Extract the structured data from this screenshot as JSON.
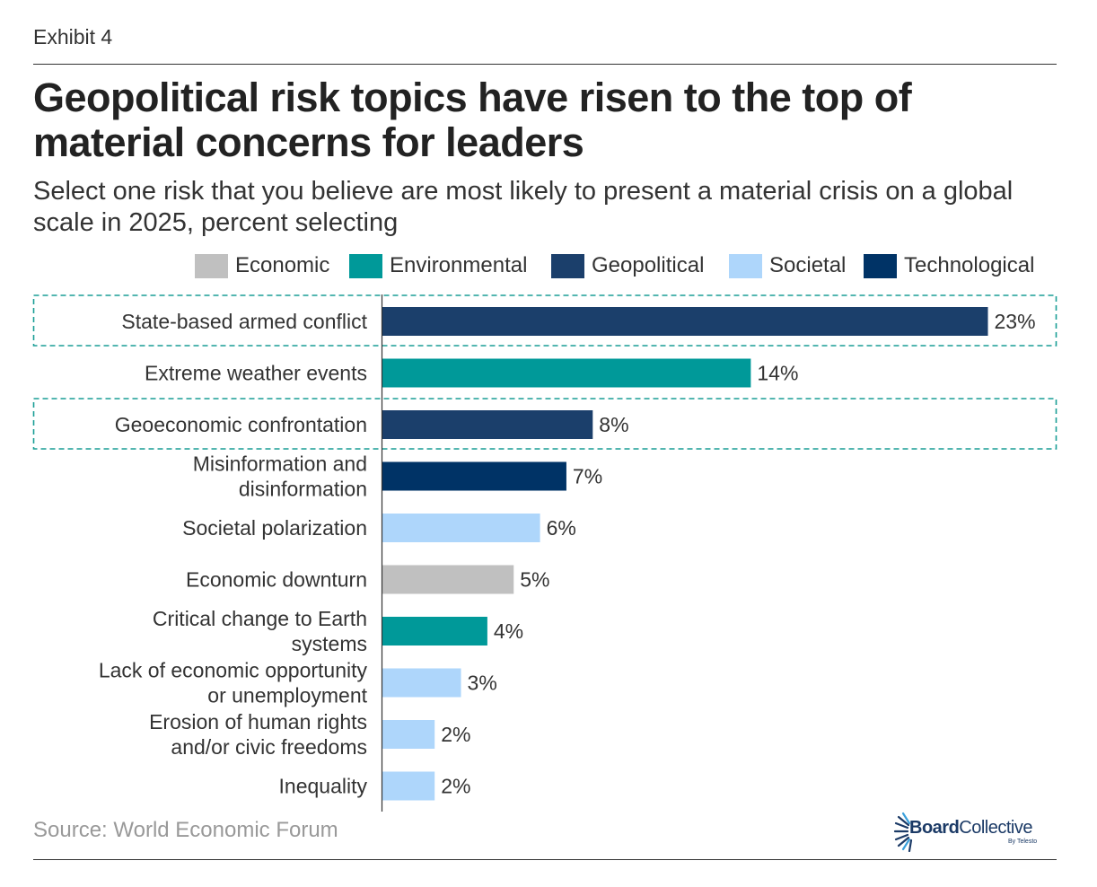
{
  "header": {
    "exhibit": "Exhibit 4",
    "title": "Geopolitical risk topics have risen to the top of material concerns for leaders",
    "subtitle": "Select one risk that you believe are most likely to present a material crisis on a global scale in 2025, percent selecting"
  },
  "legend": [
    {
      "label": "Economic",
      "color": "#c0c0c0"
    },
    {
      "label": "Environmental",
      "color": "#009999"
    },
    {
      "label": "Geopolitical",
      "color": "#1b3f6b"
    },
    {
      "label": "Societal",
      "color": "#aed6fb"
    },
    {
      "label": "Technological",
      "color": "#003366"
    }
  ],
  "chart_data": {
    "type": "bar",
    "orientation": "horizontal",
    "title": "Geopolitical risk topics have risen to the top of material concerns for leaders",
    "subtitle": "Select one risk that you believe are most likely to present a material crisis on a global scale in 2025, percent selecting",
    "xlabel": "",
    "ylabel": "",
    "unit": "%",
    "xlim": [
      0,
      23
    ],
    "grid": false,
    "legend_position": "top-right",
    "categories": [
      "State-based armed conflict",
      "Extreme weather events",
      "Geoeconomic confrontation",
      "Misinformation and disinformation",
      "Societal polarization",
      "Economic downturn",
      "Critical change to Earth systems",
      "Lack of economic opportunity or unemployment",
      "Erosion of human rights and/or civic freedoms",
      "Inequality"
    ],
    "category_lines": [
      [
        "State-based armed conflict"
      ],
      [
        "Extreme weather events"
      ],
      [
        "Geoeconomic confrontation"
      ],
      [
        "Misinformation and",
        "disinformation"
      ],
      [
        "Societal polarization"
      ],
      [
        "Economic downturn"
      ],
      [
        "Critical change to Earth",
        "systems"
      ],
      [
        "Lack of economic opportunity",
        "or unemployment"
      ],
      [
        "Erosion of human rights",
        "and/or civic freedoms"
      ],
      [
        "Inequality"
      ]
    ],
    "values": [
      23,
      14,
      8,
      7,
      6,
      5,
      4,
      3,
      2,
      2
    ],
    "value_labels": [
      "23%",
      "14%",
      "8%",
      "7%",
      "6%",
      "5%",
      "4%",
      "3%",
      "2%",
      "2%"
    ],
    "groups": [
      "Geopolitical",
      "Environmental",
      "Geopolitical",
      "Technological",
      "Societal",
      "Economic",
      "Environmental",
      "Societal",
      "Societal",
      "Societal"
    ],
    "highlighted": [
      "State-based armed conflict",
      "Geoeconomic confrontation"
    ],
    "highlight_color": "#1a9e96"
  },
  "footer": {
    "source": "Source: World Economic Forum",
    "logo_bold": "Board",
    "logo_regular": "Collective",
    "logo_sub": "By Telesto"
  }
}
